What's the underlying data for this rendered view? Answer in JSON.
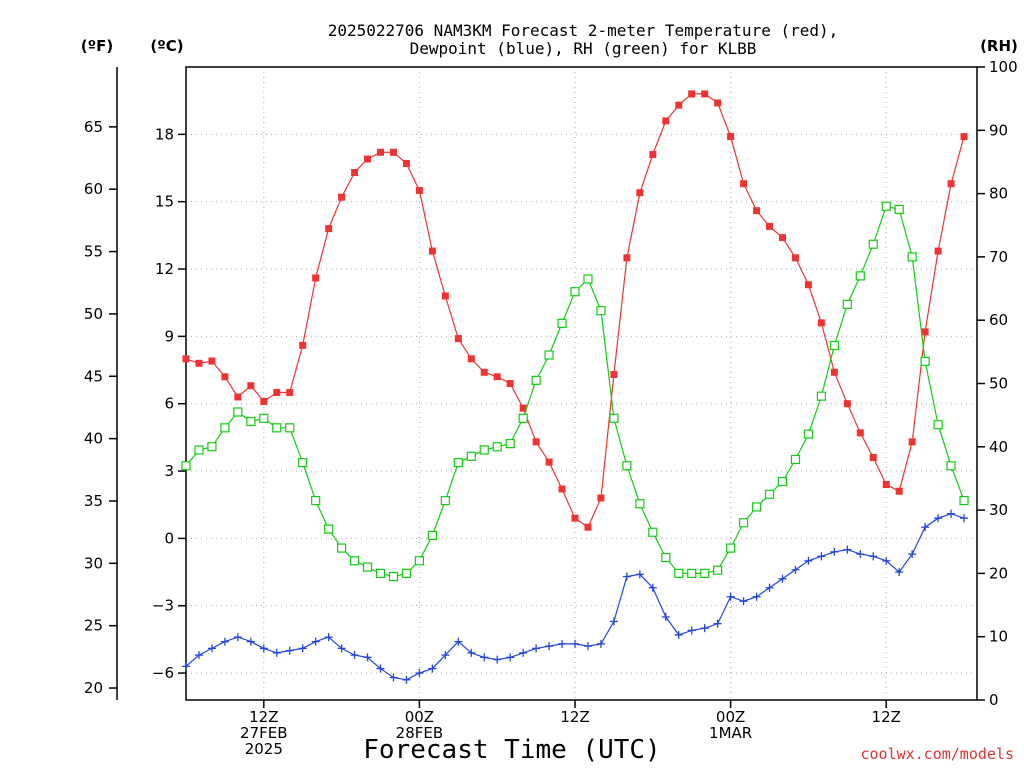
{
  "chart_data": {
    "type": "line",
    "title_lines": [
      "2025022706 NAM3KM Forecast 2-meter Temperature (red),",
      "Dewpoint (blue), RH (green) for KLBB"
    ],
    "xlabel": "Forecast Time (UTC)",
    "credit": "coolwx.com/models",
    "units": {
      "f": "(ºF)",
      "c": "(ºC)",
      "rh": "(RH)"
    },
    "x_range_hours": [
      0,
      61
    ],
    "x_ticks": [
      {
        "hour": 6,
        "lines": [
          "12Z",
          "27FEB",
          "2025"
        ]
      },
      {
        "hour": 18,
        "lines": [
          "00Z",
          "28FEB"
        ]
      },
      {
        "hour": 30,
        "lines": [
          "12Z"
        ]
      },
      {
        "hour": 42,
        "lines": [
          "00Z",
          "1MAR"
        ]
      },
      {
        "hour": 54,
        "lines": [
          "12Z"
        ]
      }
    ],
    "y_left_c": {
      "range": [
        -7.2,
        21.0
      ],
      "ticks": [
        -6,
        -3,
        0,
        3,
        6,
        9,
        12,
        15,
        18
      ]
    },
    "y_left_f": {
      "ticks": [
        20,
        25,
        30,
        35,
        40,
        45,
        50,
        55,
        60,
        65
      ]
    },
    "y_right_rh": {
      "range": [
        0,
        100
      ],
      "ticks": [
        0,
        10,
        20,
        30,
        40,
        50,
        60,
        70,
        80,
        90,
        100
      ]
    },
    "grid": true,
    "series": [
      {
        "name": "Temperature",
        "color": "#ee3333",
        "marker": "filled-square",
        "axis": "c",
        "values": [
          8.0,
          7.8,
          7.9,
          7.2,
          6.3,
          6.8,
          6.1,
          6.5,
          6.5,
          8.6,
          11.6,
          13.8,
          15.2,
          16.3,
          16.9,
          17.2,
          17.2,
          16.7,
          15.5,
          12.8,
          10.8,
          8.9,
          8.0,
          7.4,
          7.2,
          6.9,
          5.8,
          4.3,
          3.4,
          2.2,
          0.9,
          0.5,
          1.8,
          7.3,
          12.5,
          15.4,
          17.1,
          18.6,
          19.3,
          19.8,
          19.8,
          19.4,
          17.9,
          15.8,
          14.6,
          13.9,
          13.4,
          12.5,
          11.3,
          9.6,
          7.4,
          6.0,
          4.7,
          3.6,
          2.4,
          2.1,
          4.3,
          9.2,
          12.8,
          15.8,
          17.9
        ]
      },
      {
        "name": "Dewpoint",
        "color": "#2244dd",
        "marker": "plus",
        "axis": "c",
        "values": [
          -5.7,
          -5.2,
          -4.9,
          -4.6,
          -4.4,
          -4.6,
          -4.9,
          -5.1,
          -5.0,
          -4.9,
          -4.6,
          -4.4,
          -4.9,
          -5.2,
          -5.3,
          -5.8,
          -6.2,
          -6.3,
          -6.0,
          -5.8,
          -5.2,
          -4.6,
          -5.1,
          -5.3,
          -5.4,
          -5.3,
          -5.1,
          -4.9,
          -4.8,
          -4.7,
          -4.7,
          -4.8,
          -4.7,
          -3.7,
          -1.7,
          -1.6,
          -2.2,
          -3.5,
          -4.3,
          -4.1,
          -4.0,
          -3.8,
          -2.6,
          -2.8,
          -2.6,
          -2.2,
          -1.8,
          -1.4,
          -1.0,
          -0.8,
          -0.6,
          -0.5,
          -0.7,
          -0.8,
          -1.0,
          -1.5,
          -0.7,
          0.5,
          0.9,
          1.1,
          0.9
        ]
      },
      {
        "name": "RH",
        "color": "#11cc11",
        "marker": "open-square",
        "axis": "rh",
        "values": [
          37,
          39.5,
          40,
          43,
          45.5,
          44,
          44.5,
          43,
          43,
          37.5,
          31.5,
          27,
          24,
          22,
          21,
          20,
          19.5,
          20,
          22,
          26,
          31.5,
          37.5,
          38.5,
          39.5,
          40,
          40.5,
          44.5,
          50.5,
          54.5,
          59.5,
          64.5,
          66.5,
          61.5,
          44.5,
          37,
          31,
          26.5,
          22.5,
          20,
          20,
          20,
          20.5,
          24,
          28,
          30.5,
          32.5,
          34.5,
          38,
          42,
          48,
          56,
          62.5,
          67,
          72,
          78,
          77.5,
          70,
          53.5,
          43.5,
          37,
          31.5
        ]
      }
    ]
  }
}
